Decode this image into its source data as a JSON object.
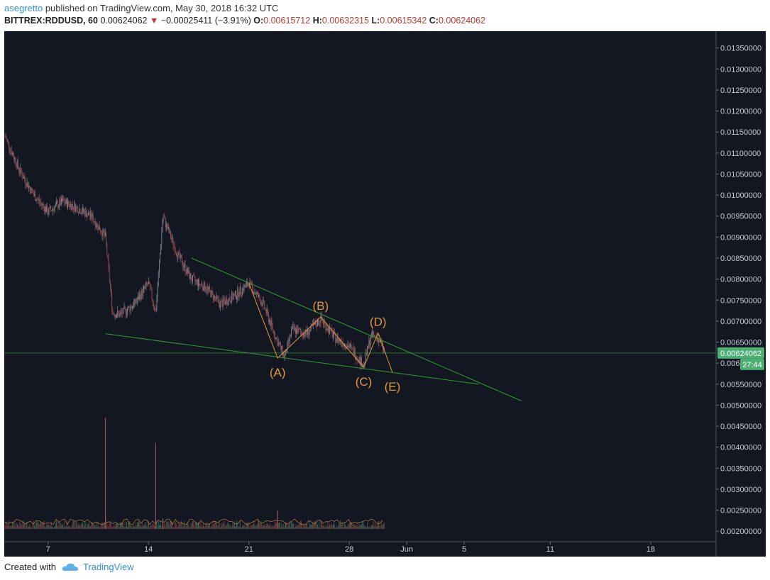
{
  "header": {
    "author": "asegretto",
    "published_text": "published on TradingView.com, May 30, 2018 16:32 UTC",
    "symbol": "BITTREX:RDDUSD, 60",
    "last": "0.00624062",
    "change": "−0.00025411 (−3.91%)",
    "open_label": "O:",
    "open": "0.00615712",
    "high_label": "H:",
    "high": "0.00632315",
    "low_label": "L:",
    "low": "0.00615342",
    "close_label": "C:",
    "close": "0.00624062"
  },
  "footer": {
    "created_with": "Created with",
    "brand": "TradingView"
  },
  "colors": {
    "background": "#131722",
    "up": "#8a8f9a",
    "down": "#a25353",
    "trendline": "#2ca02c",
    "wave": "#e0963c",
    "price_tag": "#4caf73"
  },
  "chart_data": {
    "type": "candlestick",
    "x_tick_labels": [
      "7",
      "14",
      "21",
      "28",
      "Jun",
      "5",
      "11",
      "18"
    ],
    "y_tick_labels": [
      "0.01350000",
      "0.01300000",
      "0.01250000",
      "0.01200000",
      "0.01150000",
      "0.01100000",
      "0.01050000",
      "0.01000000",
      "0.00950000",
      "0.00900000",
      "0.00850000",
      "0.00800000",
      "0.00750000",
      "0.00700000",
      "0.00650000",
      "0.006",
      "0.00550000",
      "0.00500000",
      "0.00450000",
      "0.00400000",
      "0.00350000",
      "0.00300000",
      "0.00250000",
      "0.00200000"
    ],
    "ylim": [
      0.00175,
      0.0139
    ],
    "current_price": "0.00624062",
    "countdown": "27:44",
    "price_path": [
      [
        "May 4",
        0.0114
      ],
      [
        "May 5",
        0.0106
      ],
      [
        "May 6",
        0.01
      ],
      [
        "May 7",
        0.0096
      ],
      [
        "May 8",
        0.00985
      ],
      [
        "May 9",
        0.0097
      ],
      [
        "May 10",
        0.0095
      ],
      [
        "May 11",
        0.009
      ],
      [
        "May 11 12h",
        0.0072
      ],
      [
        "May 12",
        0.00715
      ],
      [
        "May 13",
        0.0074
      ],
      [
        "May 14",
        0.0079
      ],
      [
        "May 14 12h",
        0.0072
      ],
      [
        "May 15",
        0.0095
      ],
      [
        "May 16",
        0.0086
      ],
      [
        "May 17",
        0.008
      ],
      [
        "May 18",
        0.0078
      ],
      [
        "May 19",
        0.0074
      ],
      [
        "May 20",
        0.0076
      ],
      [
        "May 21",
        0.0079
      ],
      [
        "May 22",
        0.0074
      ],
      [
        "May 23",
        0.0065
      ],
      [
        "May 23 12h",
        0.00615
      ],
      [
        "May 24",
        0.0068
      ],
      [
        "May 25",
        0.0067
      ],
      [
        "May 26",
        0.00705
      ],
      [
        "May 27",
        0.0066
      ],
      [
        "May 28",
        0.0064
      ],
      [
        "May 29",
        0.00595
      ],
      [
        "May 29 12h",
        0.00665
      ],
      [
        "May 30",
        0.0066
      ],
      [
        "May 30 12h",
        0.00624
      ]
    ],
    "volume_spikes": [
      [
        "May 11",
        0.0047
      ],
      [
        "May 14 12h",
        0.0041
      ],
      [
        "May 15",
        0.0023
      ],
      [
        "May 23",
        0.0025
      ]
    ],
    "annotations": [
      {
        "label": "(A)",
        "date": "May 23",
        "price": 0.00612
      },
      {
        "label": "(B)",
        "date": "May 26",
        "price": 0.0071
      },
      {
        "label": "(C)",
        "date": "May 29",
        "price": 0.0059
      },
      {
        "label": "(D)",
        "date": "May 30",
        "price": 0.00672
      },
      {
        "label": "(E)",
        "date": "May 31",
        "price": 0.00578
      }
    ],
    "trendlines": [
      {
        "from": [
          "May 17",
          0.0085
        ],
        "to": [
          "Jun 9",
          0.0051
        ]
      },
      {
        "from": [
          "May 11",
          0.0067
        ],
        "to": [
          "Jun 6",
          0.0055
        ]
      }
    ]
  }
}
